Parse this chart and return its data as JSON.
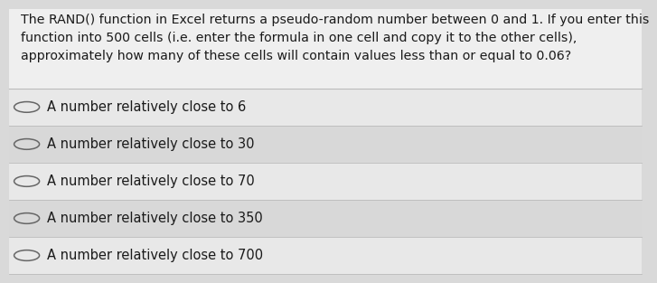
{
  "question_text": "The RAND() function in Excel returns a pseudo-random number between 0 and 1. If you enter this\nfunction into 500 cells (i.e. enter the formula in one cell and copy it to the other cells),\napproximately how many of these cells will contain values less than or equal to 0.06?",
  "options": [
    "A number relatively close to 6",
    "A number relatively close to 30",
    "A number relatively close to 70",
    "A number relatively close to 350",
    "A number relatively close to 700"
  ],
  "bg_color": "#d9d9d9",
  "question_bg": "#efefef",
  "option_bg_odd": "#e8e8e8",
  "option_bg_even": "#d8d8d8",
  "text_color": "#1a1a1a",
  "font_size_question": 10.2,
  "font_size_option": 10.5,
  "circle_color": "#666666",
  "divider_color": "#bbbbbb"
}
